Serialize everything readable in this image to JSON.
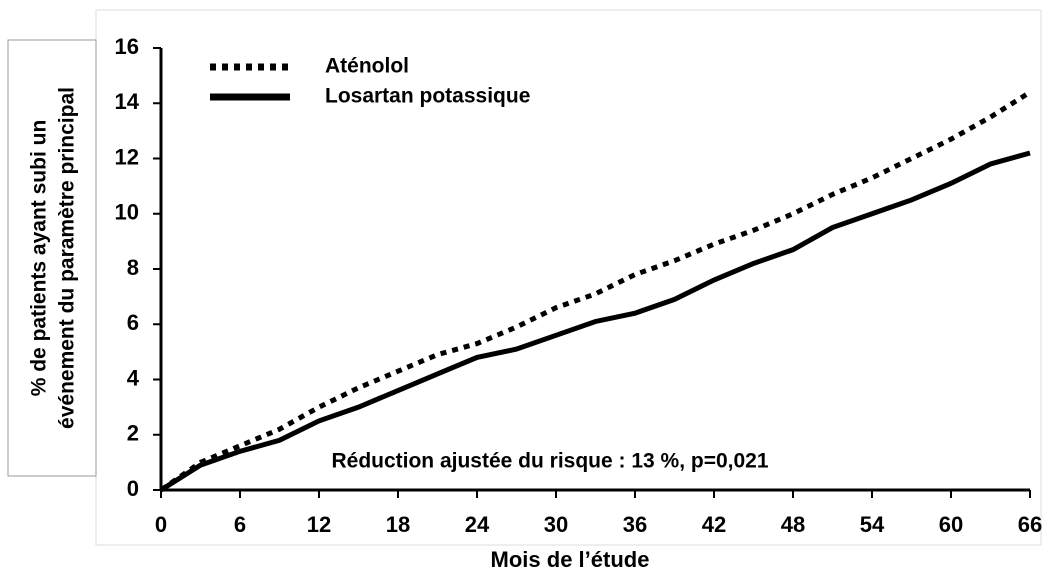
{
  "chart_data": {
    "type": "line",
    "ylabel": [
      "% de patients ayant subi un",
      "événement du paramètre principal"
    ],
    "xlabel": "Mois de l’étude",
    "annotation": "Réduction ajustée du risque : 13 %, p=0,021",
    "x": [
      0,
      3,
      6,
      9,
      12,
      15,
      18,
      21,
      24,
      27,
      30,
      33,
      36,
      39,
      42,
      45,
      48,
      51,
      54,
      57,
      60,
      63,
      66
    ],
    "series": [
      {
        "name": "Aténolol",
        "color": "#000000",
        "style": "dotted",
        "values": [
          0,
          1.0,
          1.6,
          2.2,
          3.0,
          3.7,
          4.3,
          4.9,
          5.3,
          5.9,
          6.6,
          7.1,
          7.8,
          8.3,
          8.9,
          9.4,
          10.0,
          10.7,
          11.3,
          12.0,
          12.7,
          13.5,
          14.4
        ]
      },
      {
        "name": "Losartan potassique",
        "color": "#000000",
        "style": "solid",
        "values": [
          0,
          0.9,
          1.4,
          1.8,
          2.5,
          3.0,
          3.6,
          4.2,
          4.8,
          5.1,
          5.6,
          6.1,
          6.4,
          6.9,
          7.6,
          8.2,
          8.7,
          9.5,
          10.0,
          10.5,
          11.1,
          11.8,
          12.2
        ]
      }
    ],
    "xlim": [
      0,
      66
    ],
    "xticks": [
      0,
      6,
      12,
      18,
      24,
      30,
      36,
      42,
      48,
      54,
      60,
      66
    ],
    "ylim": [
      0,
      16
    ],
    "yticks": [
      0,
      2,
      4,
      6,
      8,
      10,
      12,
      14,
      16
    ],
    "legend": "top-left"
  }
}
